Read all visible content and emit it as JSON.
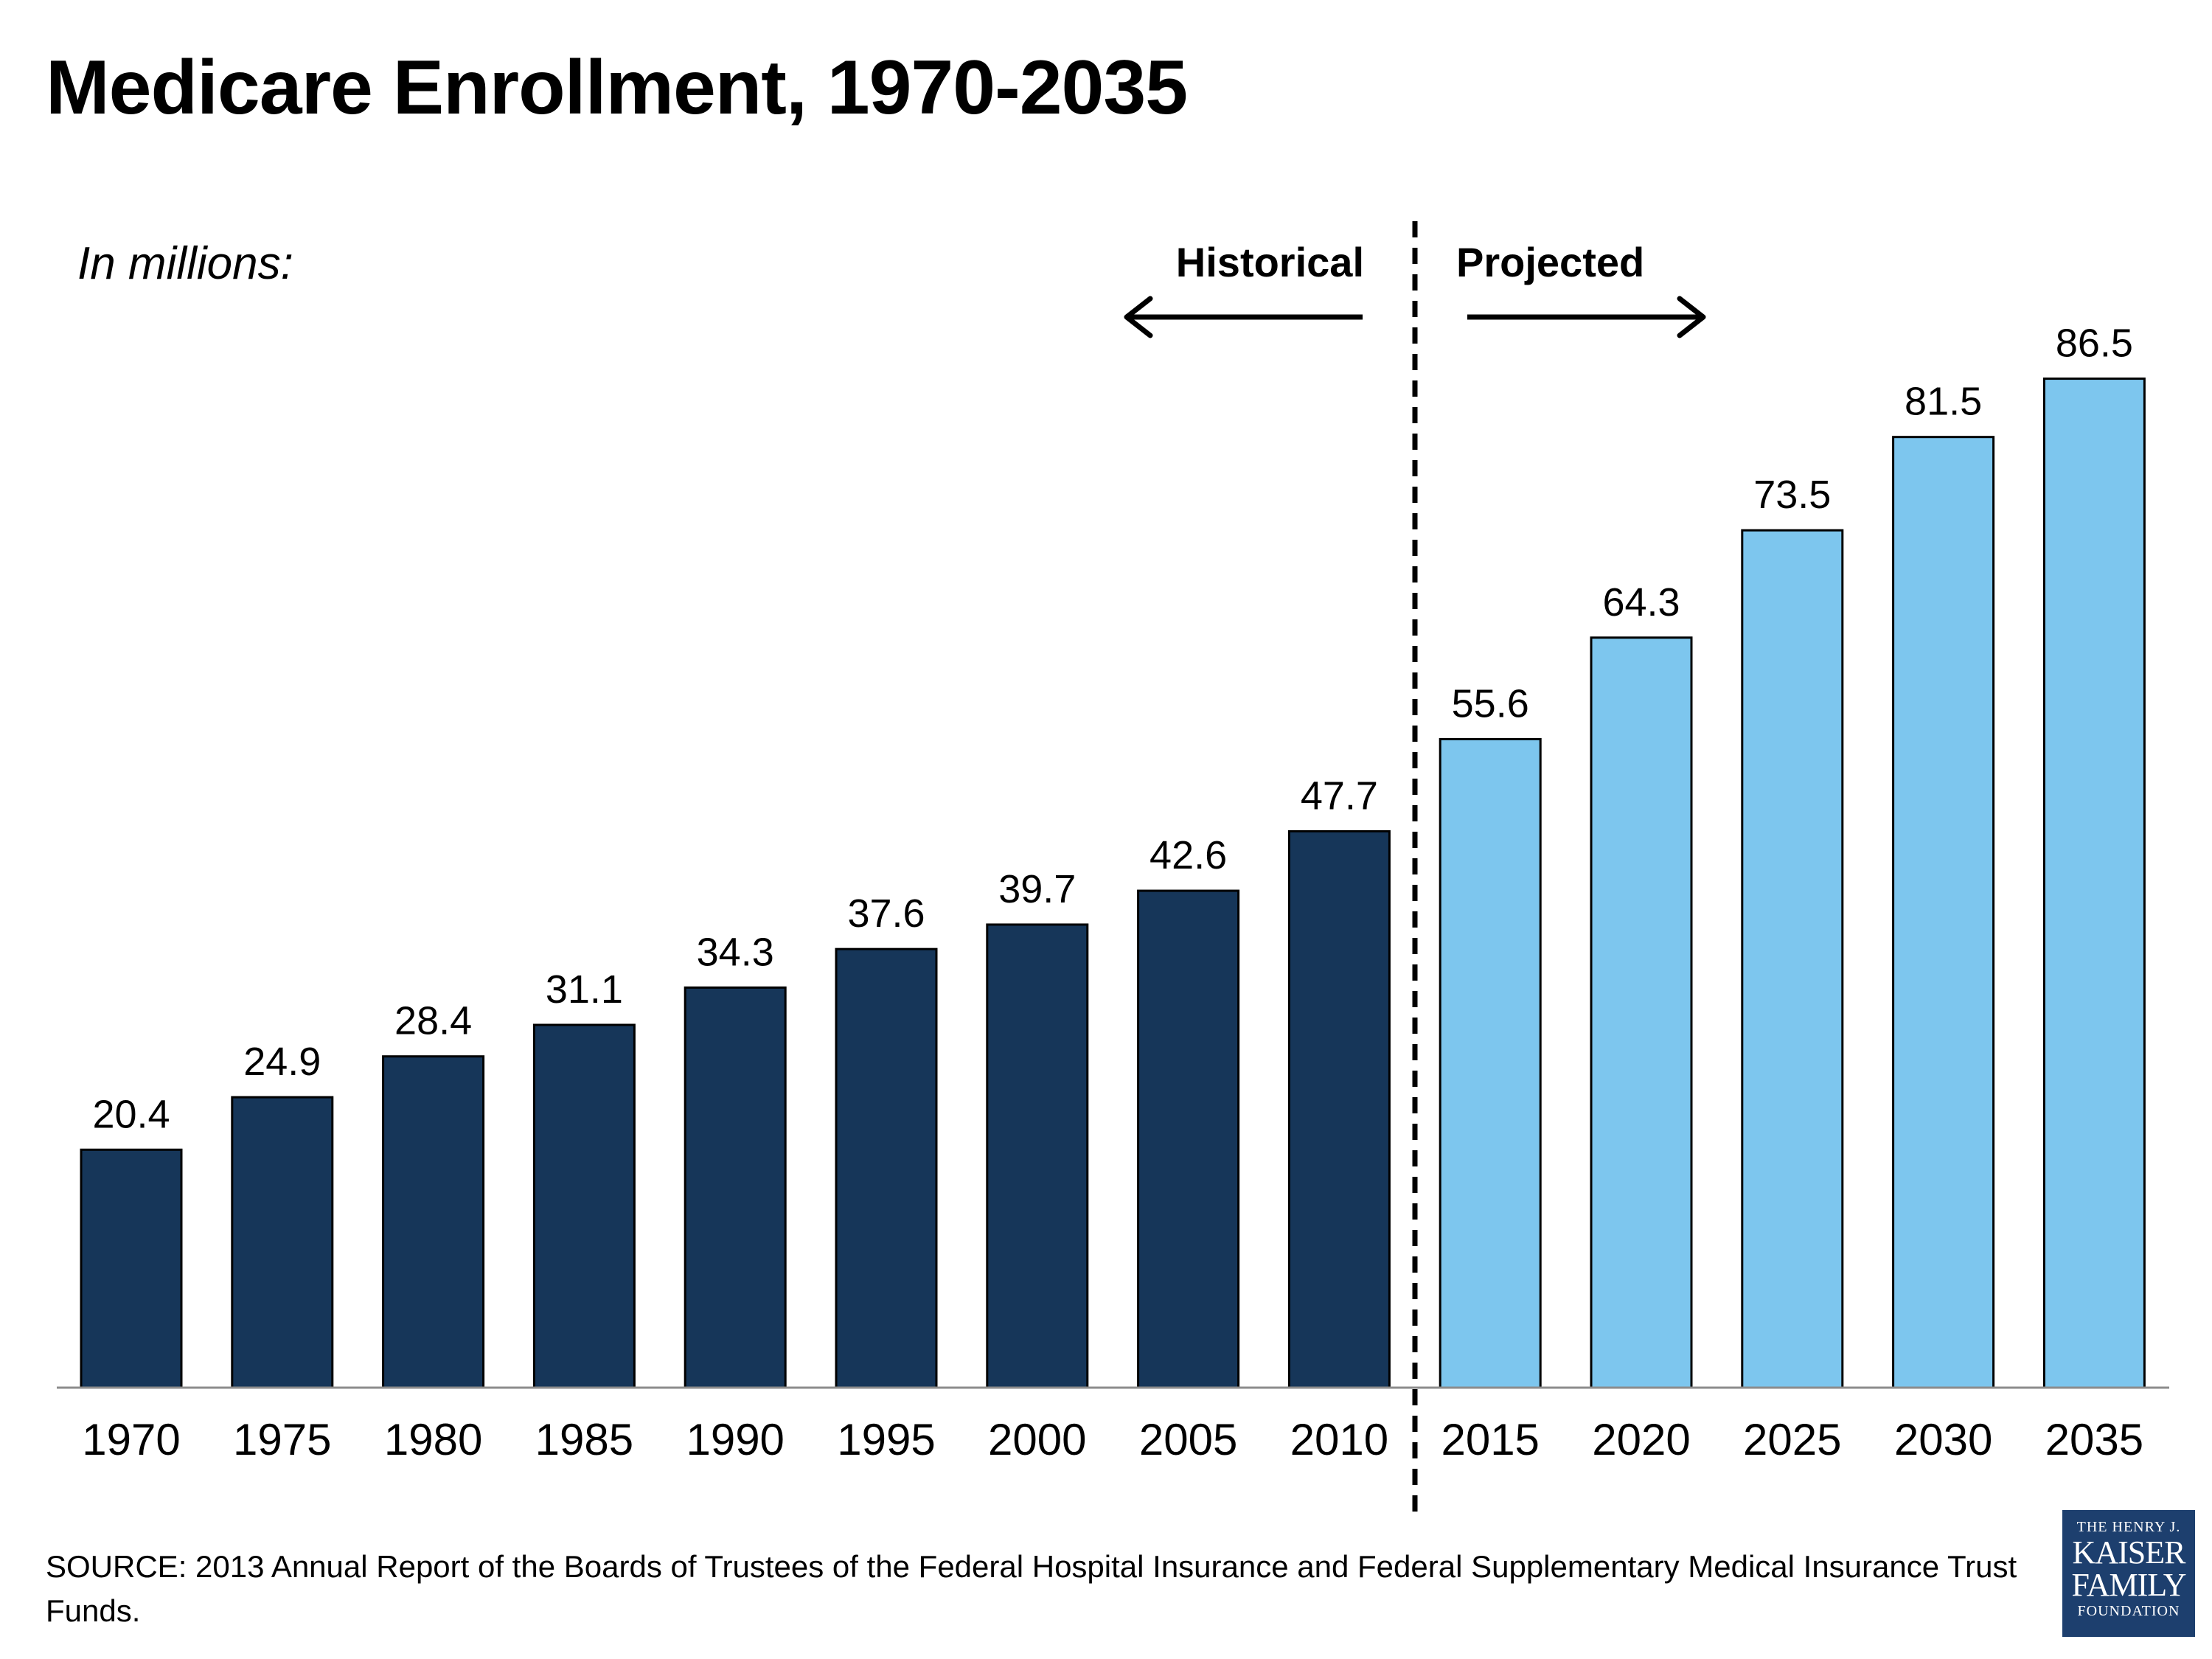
{
  "title": "Medicare Enrollment, 1970-2035",
  "subtitle": "In millions:",
  "source": "SOURCE: 2013 Annual Report of the Boards of Trustees of the Federal Hospital Insurance and Federal Supplementary Medical Insurance Trust Funds.",
  "logo": {
    "line1": "THE HENRY J.",
    "line2": "KAISER",
    "line3": "FAMILY",
    "line4": "FOUNDATION"
  },
  "colors": {
    "historical": "#163659",
    "projected": "#7dc6ee",
    "logo_bg": "#1d3f6e"
  },
  "chart_data": {
    "type": "bar",
    "title": "Medicare Enrollment, 1970-2035",
    "ylabel": "In millions:",
    "xlabel": "",
    "categories": [
      "1970",
      "1975",
      "1980",
      "1985",
      "1990",
      "1995",
      "2000",
      "2005",
      "2010",
      "2015",
      "2020",
      "2025",
      "2030",
      "2035"
    ],
    "values": [
      20.4,
      24.9,
      28.4,
      31.1,
      34.3,
      37.6,
      39.7,
      42.6,
      47.7,
      55.6,
      64.3,
      73.5,
      81.5,
      86.5
    ],
    "value_labels": [
      "20.4",
      "24.9",
      "28.4",
      "31.1",
      "34.3",
      "37.6",
      "39.7",
      "42.6",
      "47.7",
      "55.6",
      "64.3",
      "73.5",
      "81.5",
      "86.5"
    ],
    "ylim": [
      0,
      100
    ],
    "grid": false,
    "segments": [
      {
        "name": "Historical",
        "from": "1970",
        "to": "2010",
        "arrow": "left"
      },
      {
        "name": "Projected",
        "from": "2015",
        "to": "2035",
        "arrow": "right"
      }
    ],
    "divider_between": [
      "2010",
      "2015"
    ]
  }
}
